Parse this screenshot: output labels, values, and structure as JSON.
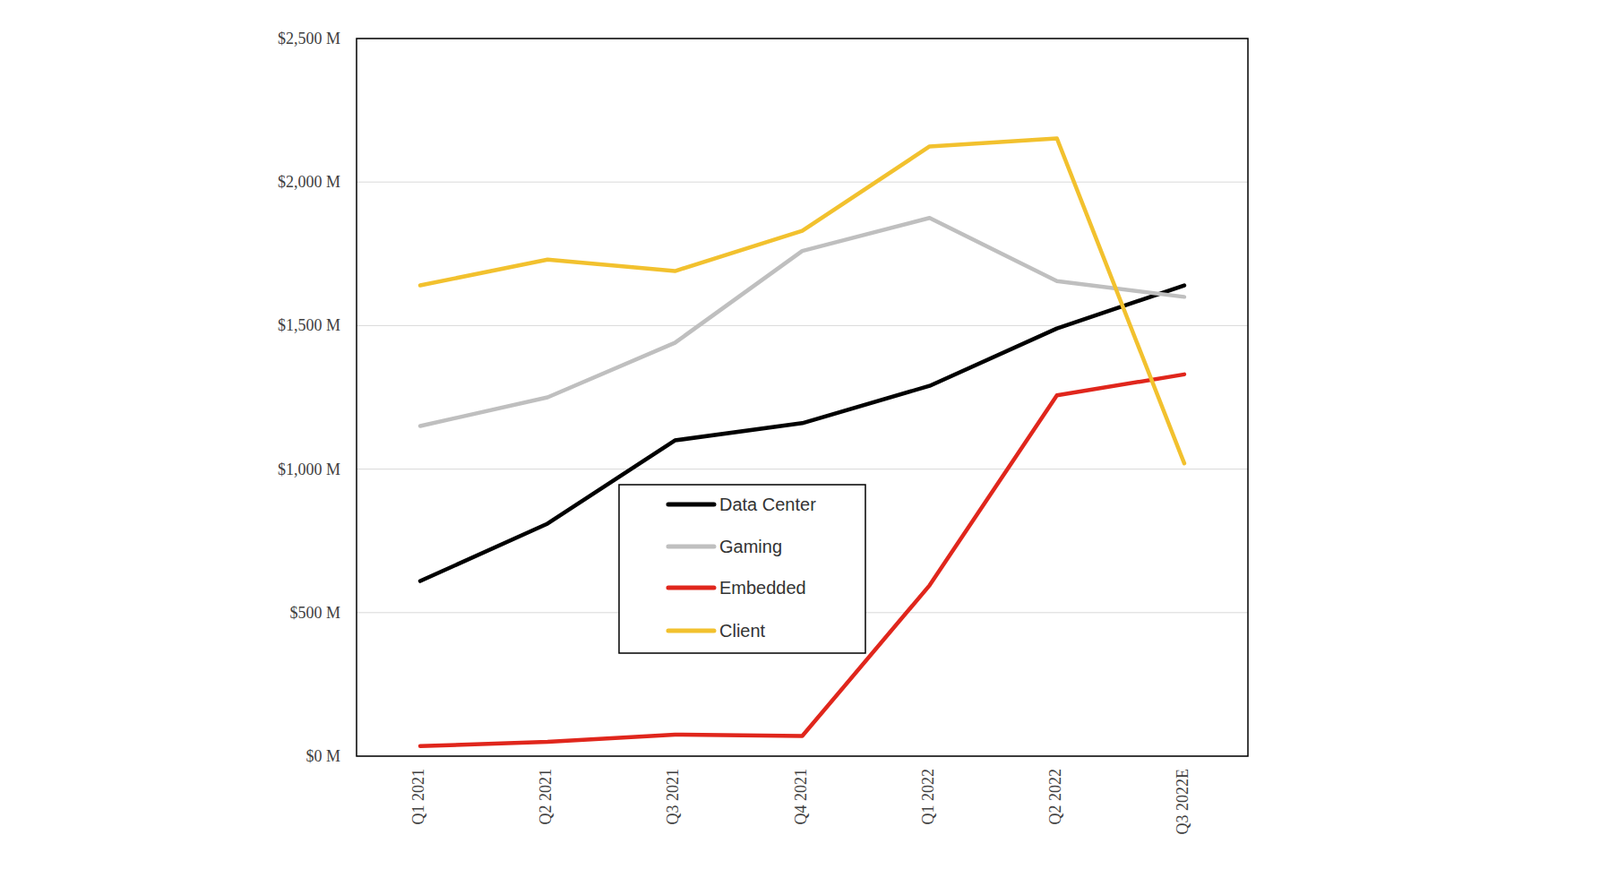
{
  "chart_data": {
    "type": "line",
    "categories": [
      "Q1 2021",
      "Q2 2021",
      "Q3 2021",
      "Q4 2021",
      "Q1 2022",
      "Q2 2022",
      "Q3 2022E"
    ],
    "series": [
      {
        "name": "Data Center",
        "color": "#000000",
        "values": [
          610,
          810,
          1100,
          1160,
          1290,
          1490,
          1640
        ]
      },
      {
        "name": "Gaming",
        "color": "#bfbfbf",
        "values": [
          1150,
          1250,
          1440,
          1760,
          1875,
          1655,
          1600
        ]
      },
      {
        "name": "Embedded",
        "color": "#e0261c",
        "values": [
          35,
          50,
          75,
          70,
          595,
          1257,
          1330
        ]
      },
      {
        "name": "Client",
        "color": "#f2c12e",
        "values": [
          1640,
          1730,
          1690,
          1830,
          2124,
          2152,
          1020
        ]
      }
    ],
    "ylim": [
      0,
      2500
    ],
    "yticks": [
      {
        "value": 0,
        "label": "$0 M"
      },
      {
        "value": 500,
        "label": "$500 M"
      },
      {
        "value": 1000,
        "label": "$1,000 M"
      },
      {
        "value": 1500,
        "label": "$1,500 M"
      },
      {
        "value": 2000,
        "label": "$2,000 M"
      },
      {
        "value": 2500,
        "label": "$2,500 M"
      }
    ],
    "grid": true
  }
}
